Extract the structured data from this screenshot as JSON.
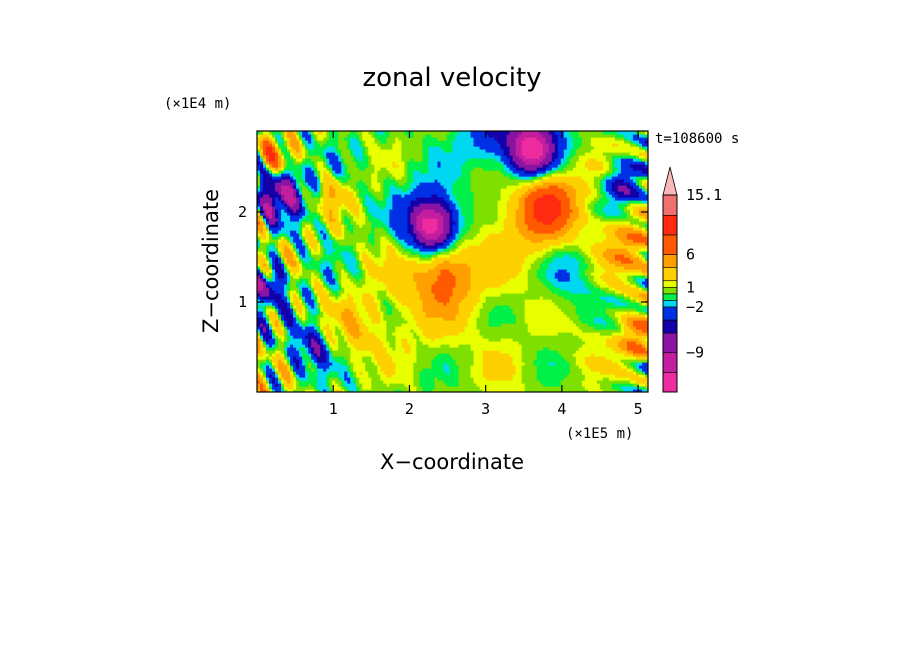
{
  "chart_data": {
    "type": "heatmap",
    "title": "zonal velocity",
    "xlabel": "X−coordinate",
    "ylabel": "Z−coordinate",
    "x_scale_label": "(×1E5 m)",
    "y_scale_label": "(×1E4 m)",
    "time_label": "t=108600 s",
    "xlim": [
      0,
      5.13
    ],
    "ylim": [
      0,
      2.9
    ],
    "x_ticks": [
      1,
      2,
      3,
      4,
      5
    ],
    "x_tick_labels": [
      "1",
      "2",
      "3",
      "4",
      "5"
    ],
    "y_ticks": [
      1,
      2
    ],
    "y_tick_labels": [
      "1",
      "2"
    ],
    "colorbar": {
      "levels": [
        -15,
        -12,
        -9,
        -6,
        -4,
        -2,
        -1,
        0,
        1,
        2,
        4,
        6,
        9,
        12,
        15.1
      ],
      "labeled_levels": [
        15.1,
        6,
        1,
        -2,
        -9
      ],
      "labels": [
        "15.1",
        "6",
        "1",
        "−2",
        "−9"
      ],
      "colors": [
        "#ee2b9f",
        "#c41ea0",
        "#8a14a2",
        "#1400a8",
        "#0030e6",
        "#00d7f0",
        "#00f04a",
        "#7fe000",
        "#e8ff00",
        "#ffd000",
        "#ffa000",
        "#ff5a00",
        "#ff2a10",
        "#f07070",
        "#f8b8b8"
      ],
      "extend": "max"
    },
    "blobs": [
      {
        "x": 2.3,
        "z": 1.25,
        "r": 0.75,
        "v": 3
      },
      {
        "x": 2.45,
        "z": 1.35,
        "r": 0.35,
        "v": 6
      },
      {
        "x": 3.7,
        "z": 2.1,
        "r": 0.75,
        "v": 4
      },
      {
        "x": 3.8,
        "z": 2.1,
        "r": 0.35,
        "v": 7
      },
      {
        "x": 2.3,
        "z": 1.85,
        "r": 0.45,
        "v": -7
      },
      {
        "x": 2.3,
        "z": 1.85,
        "r": 0.25,
        "v": -10
      },
      {
        "x": 3.6,
        "z": 2.7,
        "r": 0.5,
        "v": -7
      },
      {
        "x": 3.6,
        "z": 2.7,
        "r": 0.25,
        "v": -10
      },
      {
        "x": 0.3,
        "z": 2.25,
        "r": 0.3,
        "v": -9
      },
      {
        "x": 0.2,
        "z": 2.6,
        "r": 0.25,
        "v": 6
      },
      {
        "x": 0.15,
        "z": 1.2,
        "r": 0.2,
        "v": -7
      },
      {
        "x": 4.9,
        "z": 1.6,
        "r": 0.35,
        "v": 5
      },
      {
        "x": 4.8,
        "z": 2.3,
        "r": 0.25,
        "v": -6
      },
      {
        "x": 5.0,
        "z": 0.6,
        "r": 0.25,
        "v": 6
      },
      {
        "x": 3.3,
        "z": 0.2,
        "r": 0.5,
        "v": 1
      },
      {
        "x": 4.4,
        "z": 0.5,
        "r": 0.4,
        "v": 1
      },
      {
        "x": 1.3,
        "z": 0.7,
        "r": 0.35,
        "v": 3
      },
      {
        "x": 3.0,
        "z": 2.85,
        "r": 0.35,
        "v": -3
      },
      {
        "x": 4.1,
        "z": 1.35,
        "r": 0.35,
        "v": -3
      },
      {
        "x": 1.0,
        "z": 2.2,
        "r": 0.2,
        "v": 3
      },
      {
        "x": 0.7,
        "z": 0.5,
        "r": 0.25,
        "v": -5
      }
    ]
  }
}
